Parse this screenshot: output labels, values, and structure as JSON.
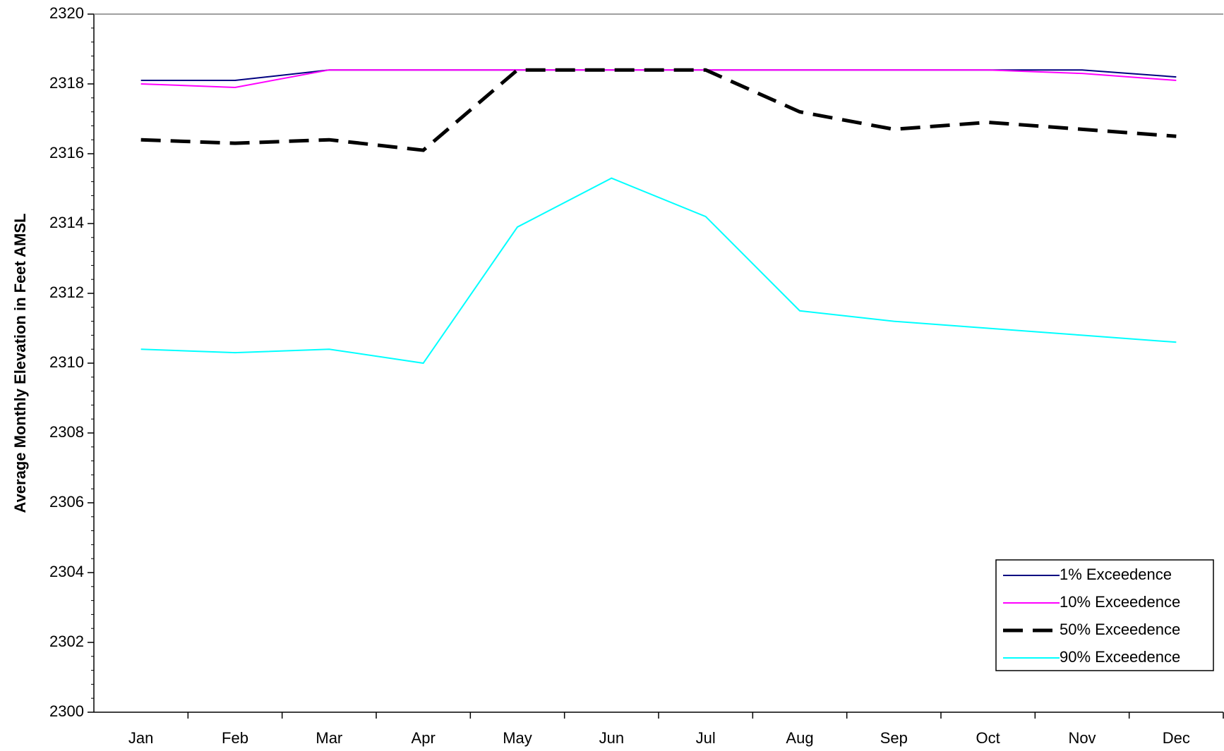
{
  "chart_data": {
    "type": "line",
    "y_label": "Average Monthly Elevation in Feet AMSL",
    "categories": [
      "Jan",
      "Feb",
      "Mar",
      "Apr",
      "May",
      "Jun",
      "Jul",
      "Aug",
      "Sep",
      "Oct",
      "Nov",
      "Dec"
    ],
    "series": [
      {
        "name": "1% Exceedence",
        "color": "#000080",
        "dashed": false,
        "values": [
          2318.1,
          2318.1,
          2318.4,
          2318.4,
          2318.4,
          2318.4,
          2318.4,
          2318.4,
          2318.4,
          2318.4,
          2318.4,
          2318.2
        ]
      },
      {
        "name": "10% Exceedence",
        "color": "#ff00ff",
        "dashed": false,
        "values": [
          2318.0,
          2317.9,
          2318.4,
          2318.4,
          2318.4,
          2318.4,
          2318.4,
          2318.4,
          2318.4,
          2318.4,
          2318.3,
          2318.1
        ]
      },
      {
        "name": "50% Exceedence",
        "color": "#000000",
        "dashed": true,
        "values": [
          2316.4,
          2316.3,
          2316.4,
          2316.1,
          2318.4,
          2318.4,
          2318.4,
          2317.2,
          2316.7,
          2316.9,
          2316.7,
          2316.5
        ]
      },
      {
        "name": "90% Exceedence",
        "color": "#00ffff",
        "dashed": false,
        "values": [
          2310.4,
          2310.3,
          2310.4,
          2310.0,
          2313.9,
          2315.3,
          2314.2,
          2311.5,
          2311.2,
          2311.0,
          2310.8,
          2310.6
        ]
      }
    ],
    "ylim": [
      2300,
      2320
    ],
    "yticks": [
      2300,
      2302,
      2304,
      2306,
      2308,
      2310,
      2312,
      2314,
      2316,
      2318,
      2320
    ],
    "grid": false,
    "legend": "lower right"
  }
}
